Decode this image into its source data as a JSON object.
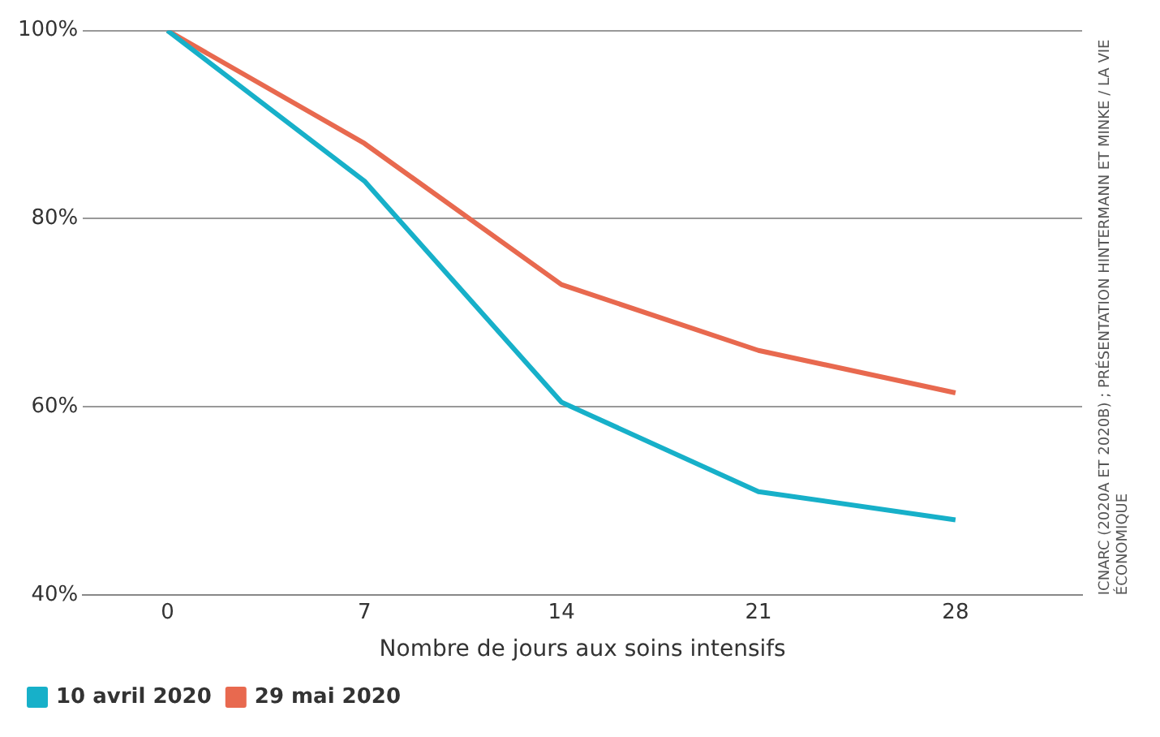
{
  "chart_data": {
    "type": "line",
    "xlabel": "Nombre de jours aux soins intensifs",
    "x": [
      0,
      7,
      14,
      21,
      28
    ],
    "series": [
      {
        "name": "10 avril 2020",
        "color": "#17b0c9",
        "values": [
          100,
          84,
          60.5,
          51,
          48
        ]
      },
      {
        "name": "29 mai 2020",
        "color": "#e8694f",
        "values": [
          100,
          88,
          73,
          66,
          61.5
        ]
      }
    ],
    "xlim": [
      -3,
      32.5
    ],
    "xticks": [
      0,
      7,
      14,
      21,
      28
    ],
    "ylim": [
      40,
      100
    ],
    "yticks": [
      {
        "value": 40,
        "label": "40%"
      },
      {
        "value": 60,
        "label": "60%"
      },
      {
        "value": 80,
        "label": "80%"
      },
      {
        "value": 100,
        "label": "100%"
      }
    ],
    "grid": "y",
    "legend": "bottom left",
    "marker": "none",
    "line_style": "solid",
    "annotations": [
      "ICNARC (2020A ET 2020B) ; PRÉSENTATION HINTERMANN ET MINKE / LA VIE ÉCONOMIQUE"
    ]
  }
}
